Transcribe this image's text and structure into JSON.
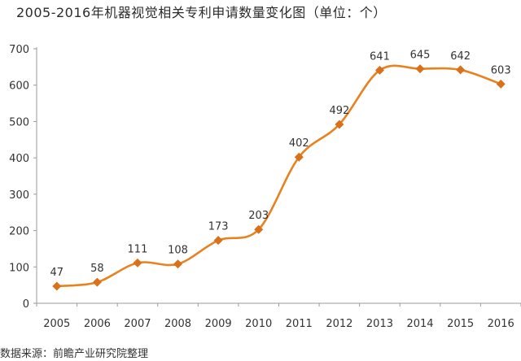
{
  "chart_data": {
    "type": "line",
    "title": "2005-2016年机器视觉相关专利申请数量变化图（单位：个）",
    "source": "数据来源：前瞻产业研究院整理",
    "categories": [
      "2005",
      "2006",
      "2007",
      "2008",
      "2009",
      "2010",
      "2011",
      "2012",
      "2013",
      "2014",
      "2015",
      "2016"
    ],
    "series": [
      {
        "values": [
          47,
          58,
          111,
          108,
          173,
          203,
          402,
          492,
          641,
          645,
          642,
          603
        ]
      }
    ],
    "data_labels": [
      "47",
      "58",
      "111",
      "108",
      "173",
      "203",
      "402",
      "492",
      "641",
      "645",
      "642",
      "603"
    ],
    "ylim": [
      0,
      700
    ],
    "yticks": [
      0,
      100,
      200,
      300,
      400,
      500,
      600,
      700
    ],
    "grid": false,
    "colors": {
      "line": "#e8821f",
      "marker": "#d9701a",
      "axis": "#9a9a9a"
    }
  }
}
